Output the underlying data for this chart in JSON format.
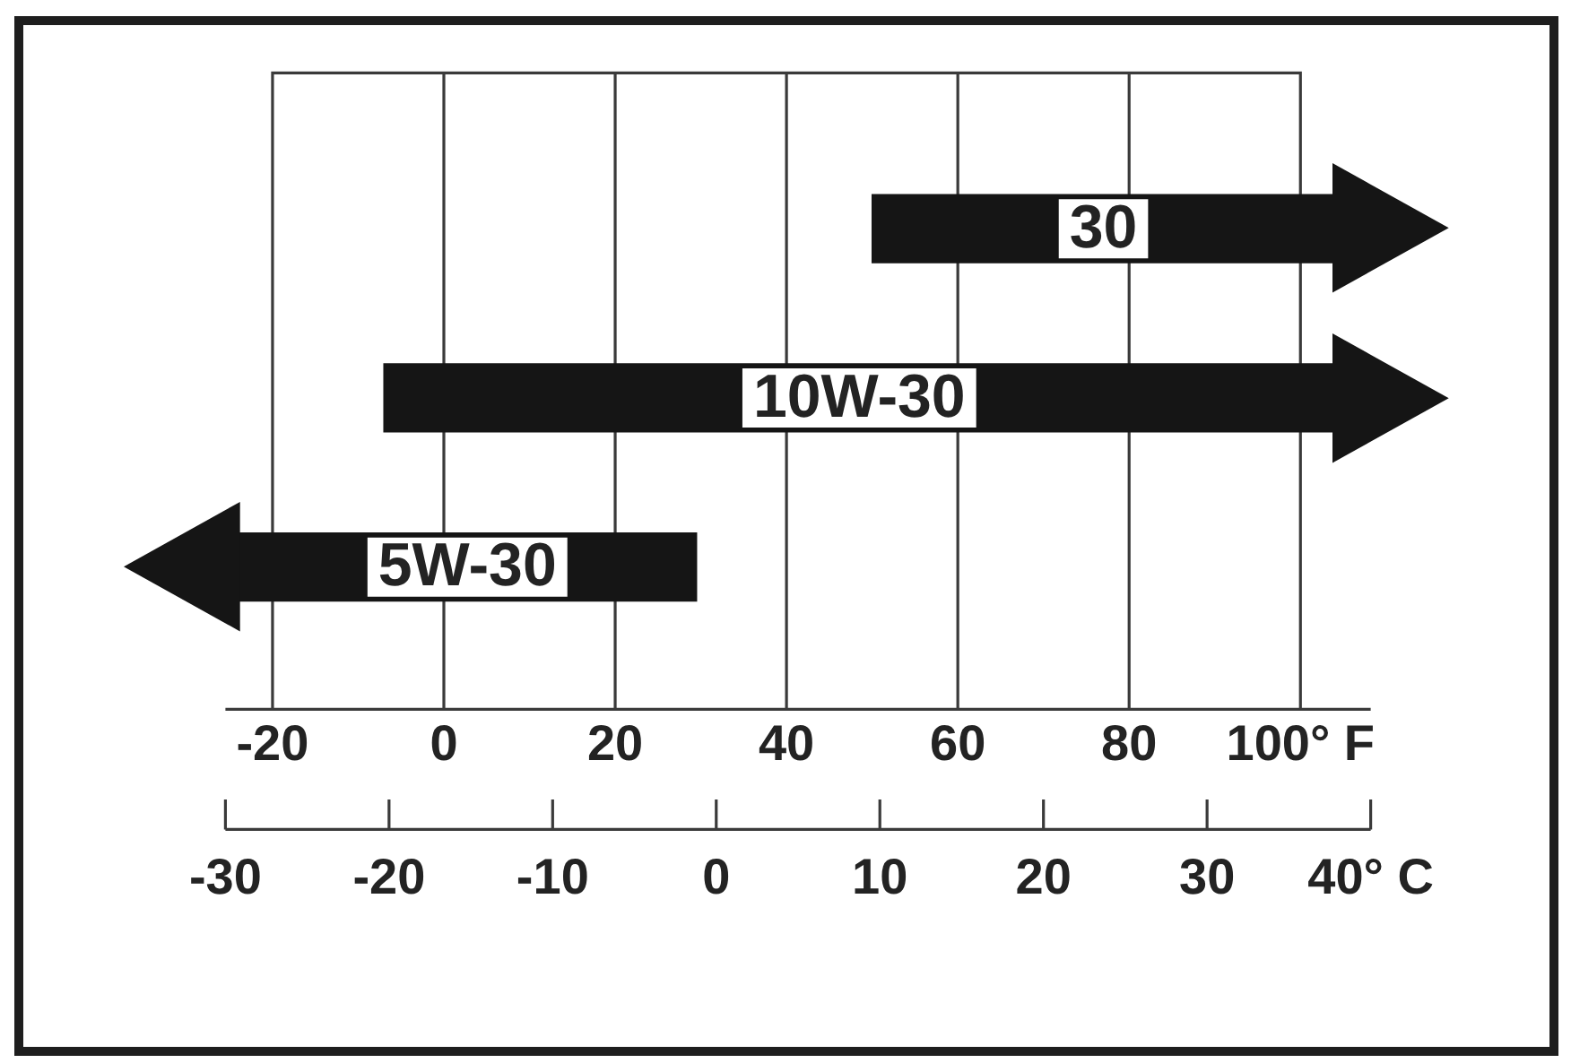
{
  "chart_data": {
    "type": "bar",
    "orientation": "horizontal",
    "categories": [
      "30",
      "10W-30",
      "5W-30"
    ],
    "values": [
      54,
      111,
      53.5
    ],
    "base": [
      50,
      -7,
      -24
    ],
    "color": "#151515",
    "xlim": [
      -25.5,
      108.2
    ],
    "xticks": [
      -20,
      0,
      20,
      40,
      60,
      80,
      {
        "value": 100,
        "label": "100° F"
      }
    ],
    "x2lim": [
      -30,
      40
    ],
    "x2ticks": [
      -30,
      -20,
      -10,
      0,
      10,
      20,
      30,
      {
        "value": 40,
        "label": "40° C"
      }
    ],
    "grid": "x"
  }
}
